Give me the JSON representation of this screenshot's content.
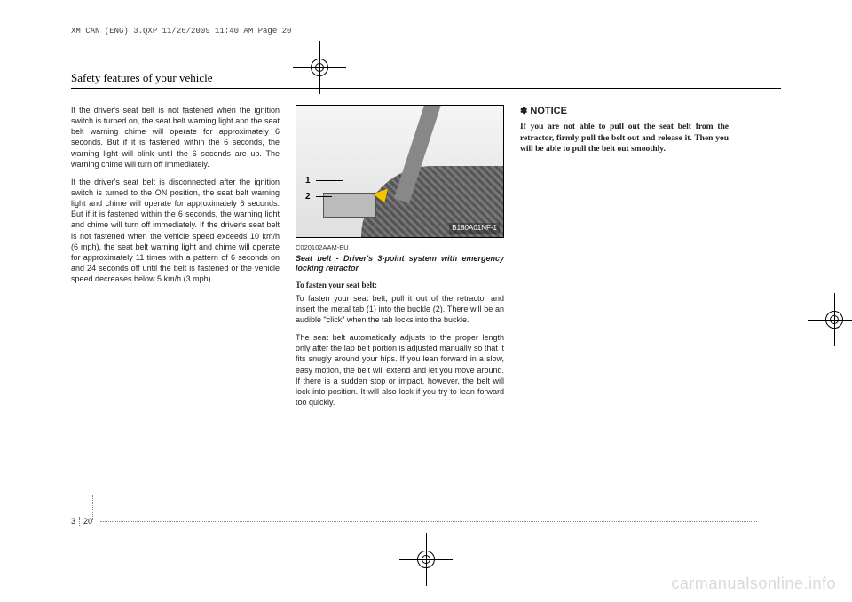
{
  "print_header": "XM CAN (ENG) 3.QXP  11/26/2009  11:40 AM  Page 20",
  "section_title": "Safety features of your vehicle",
  "col1": {
    "p1": "If the driver's seat belt is not fastened when the ignition switch is turned on, the seat belt warning light and the seat belt warning chime will operate for approximately 6 seconds. But if it is fastened within the 6 seconds, the warning light will blink until the 6 seconds are up. The warning chime will turn off immediately.",
    "p2": "If the driver's seat belt is disconnected after the ignition switch is turned to the ON position, the seat belt warning light and chime will operate for approximately 6 seconds. But if it is fastened within the 6 seconds, the warning light and chime will turn off immediately. If the driver's seat belt is not fastened when the vehicle speed exceeds 10 km/h (6 mph), the seat belt warning light and chime will operate for approximately 11 times with a pattern of 6 seconds on and 24 seconds off until the belt is fastened or the vehicle speed decreases below 5 km/h (3 mph)."
  },
  "figure": {
    "callout1": "1",
    "callout2": "2",
    "id": "B180A01NF-1"
  },
  "col2": {
    "code": "C020102AAM-EU",
    "caption": "Seat belt - Driver's 3-point system with emergency locking retractor",
    "sub": "To fasten your seat belt:",
    "p1": "To fasten your seat belt, pull it out of the retractor and insert the metal tab (1) into the buckle (2). There will be an audible \"click\" when the tab locks into the buckle.",
    "p2": "The seat belt automatically adjusts to the proper length only after the lap belt portion is adjusted manually so that it fits snugly around your hips. If you lean forward in a slow, easy motion, the belt will extend and let you move around. If there is a sudden stop or impact, however, the belt will lock into position. It will also lock if you try to lean forward too quickly."
  },
  "col3": {
    "notice_symbol": "✽",
    "notice_label": "NOTICE",
    "notice_body": "If you are not able to pull out the seat belt from the retractor, firmly pull the belt out and release it. Then you will be able to pull the belt out smoothly."
  },
  "footer": {
    "left_num": "3",
    "right_num": "20"
  },
  "watermark": "carmanualsonline.info"
}
